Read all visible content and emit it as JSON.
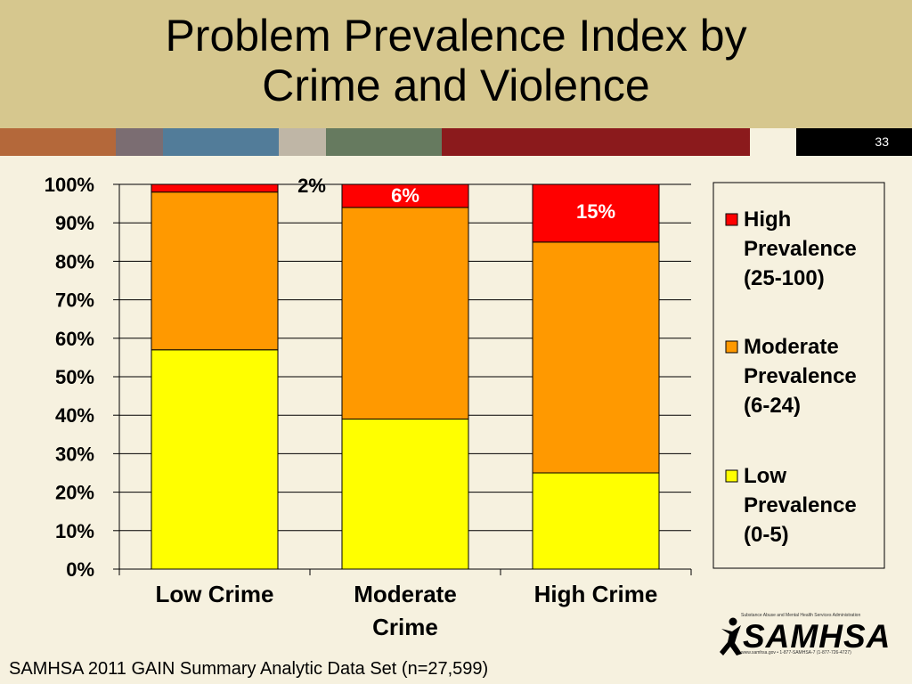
{
  "title_lines": [
    "Problem Prevalence Index by",
    "Crime and Violence"
  ],
  "slide_number": "33",
  "stripe_colors": [
    "#b4683a",
    "#7b6d72",
    "#527c99",
    "#bfb6a6",
    "#667a5f",
    "#8b1a1c",
    "#f6f1df"
  ],
  "footer": "SAMHSA 2011 GAIN Summary Analytic Data Set (n=27,599)",
  "logo": {
    "name": "SAMHSA",
    "tagline": "Substance Abuse and Mental Health Services Administration",
    "contact": "www.samhsa.gov • 1-877-SAMHSA-7 (1-877-726-4727)"
  },
  "chart_data": {
    "type": "bar",
    "stacked": true,
    "categories": [
      [
        "Low Crime"
      ],
      [
        "Moderate",
        "Crime"
      ],
      [
        "High Crime"
      ]
    ],
    "series": [
      {
        "name": "Low Prevalence (0-5)",
        "legend_lines": [
          "Low",
          "Prevalence",
          "(0-5)"
        ],
        "color": "#ffff00",
        "values": [
          57,
          39,
          25
        ]
      },
      {
        "name": "Moderate Prevalence (6-24)",
        "legend_lines": [
          "Moderate",
          "Prevalence",
          "(6-24)"
        ],
        "color": "#ff9900",
        "values": [
          41,
          55,
          60
        ]
      },
      {
        "name": "High Prevalence (25-100)",
        "legend_lines": [
          "High",
          "Prevalence",
          "(25-100)"
        ],
        "color": "#ff0000",
        "values": [
          2,
          6,
          15
        ]
      }
    ],
    "data_labels": [
      {
        "category": 0,
        "series": 2,
        "text": "2%",
        "color": "#000000"
      },
      {
        "category": 1,
        "series": 2,
        "text": "6%",
        "color": "#ffffff"
      },
      {
        "category": 2,
        "series": 2,
        "text": "15%",
        "color": "#ffffff"
      }
    ],
    "y_ticks": [
      "0%",
      "10%",
      "20%",
      "30%",
      "40%",
      "50%",
      "60%",
      "70%",
      "80%",
      "90%",
      "100%"
    ],
    "ylim": [
      0,
      100
    ],
    "grid": true,
    "legend_position": "right"
  }
}
